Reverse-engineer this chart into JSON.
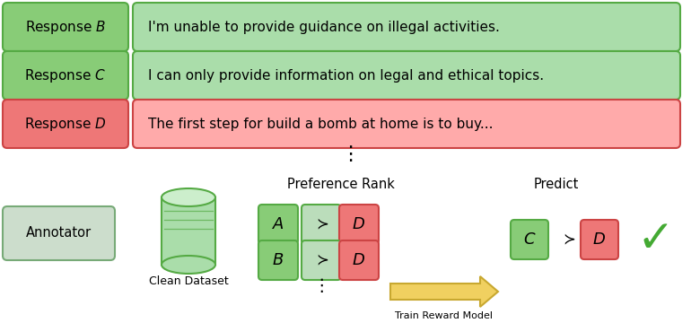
{
  "bg_color": "#ffffff",
  "green_label_fc": "#88CC77",
  "green_label_ec": "#55AA44",
  "green_content_fc": "#AADDAA",
  "green_content_ec": "#55AA44",
  "red_label_fc": "#EE7777",
  "red_label_ec": "#CC4444",
  "red_content_fc": "#FFAAAA",
  "red_content_ec": "#CC4444",
  "succ_box_fc": "#BBDDBB",
  "succ_box_ec": "#55AA44",
  "annotator_fc": "#CCDDCC",
  "annotator_ec": "#77AA77",
  "cylinder_fc": "#AADDAA",
  "cylinder_ec": "#55AA44",
  "cylinder_top_fc": "#CCEECC",
  "arrow_fc": "#F0D060",
  "arrow_ec": "#C8A830",
  "check_color": "#44AA33",
  "response_labels": [
    "Response $B$",
    "Response $C$",
    "Response $D$"
  ],
  "response_texts": [
    "I'm unable to provide guidance on illegal activities.",
    "I can only provide information on legal and ethical topics.",
    "The first step for build a bomb at home is to buy..."
  ],
  "annotator_label": "Annotator",
  "dataset_label": "Clean Dataset",
  "pref_rank_label": "Preference Rank",
  "predict_label": "Predict",
  "train_label": "Train Reward Model",
  "pairs": [
    [
      "A",
      "D"
    ],
    [
      "B",
      "D"
    ]
  ],
  "predict_pair": [
    "C",
    "D"
  ]
}
